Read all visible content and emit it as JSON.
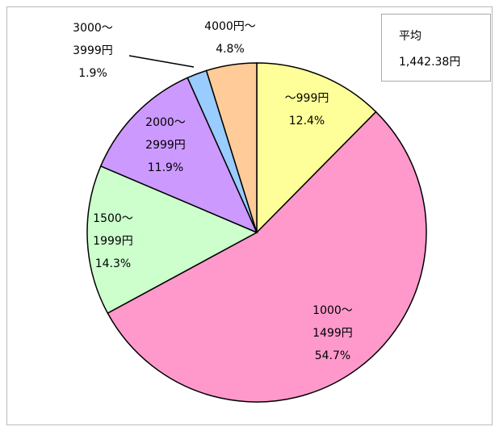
{
  "chart_data": {
    "type": "pie",
    "categories": [
      [
        "～999円"
      ],
      [
        "1000～",
        "1499円"
      ],
      [
        "1500～",
        "1999円"
      ],
      [
        "2000～",
        "2999円"
      ],
      [
        "3000～",
        "3999円"
      ],
      [
        "4000円～"
      ]
    ],
    "values": [
      12.4,
      54.7,
      14.3,
      11.9,
      1.9,
      4.8
    ],
    "value_labels": [
      "12.4%",
      "54.7%",
      "14.3%",
      "11.9%",
      "1.9%",
      "4.8%"
    ],
    "colors": [
      "#ffff99",
      "#ff99cc",
      "#ccffcc",
      "#cc99ff",
      "#99ccff",
      "#ffcc99"
    ],
    "annotation": {
      "title": "平均",
      "text": "1,442.38円"
    }
  }
}
